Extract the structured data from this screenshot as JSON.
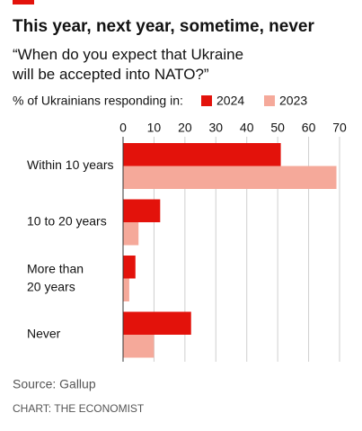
{
  "chart_data": {
    "type": "bar",
    "orientation": "horizontal",
    "title": "This year, next year, sometime, never",
    "subtitle": "“When do you expect that Ukraine\nwill be accepted into NATO?”",
    "legend_title": "% of Ukrainians responding in:",
    "categories": [
      "Within 10 years",
      "10 to 20 years",
      "More than\n20 years",
      "Never"
    ],
    "series": [
      {
        "name": "2024",
        "color": "#e3120b",
        "values": [
          51,
          12,
          4,
          22
        ]
      },
      {
        "name": "2023",
        "color": "#f5a99a",
        "values": [
          69,
          5,
          2,
          10
        ]
      }
    ],
    "xlim": [
      0,
      70
    ],
    "xticks": [
      0,
      10,
      20,
      30,
      40,
      50,
      60,
      70
    ],
    "grid": true,
    "source": "Source: Gallup",
    "credit": "CHART: THE ECONOMIST"
  }
}
